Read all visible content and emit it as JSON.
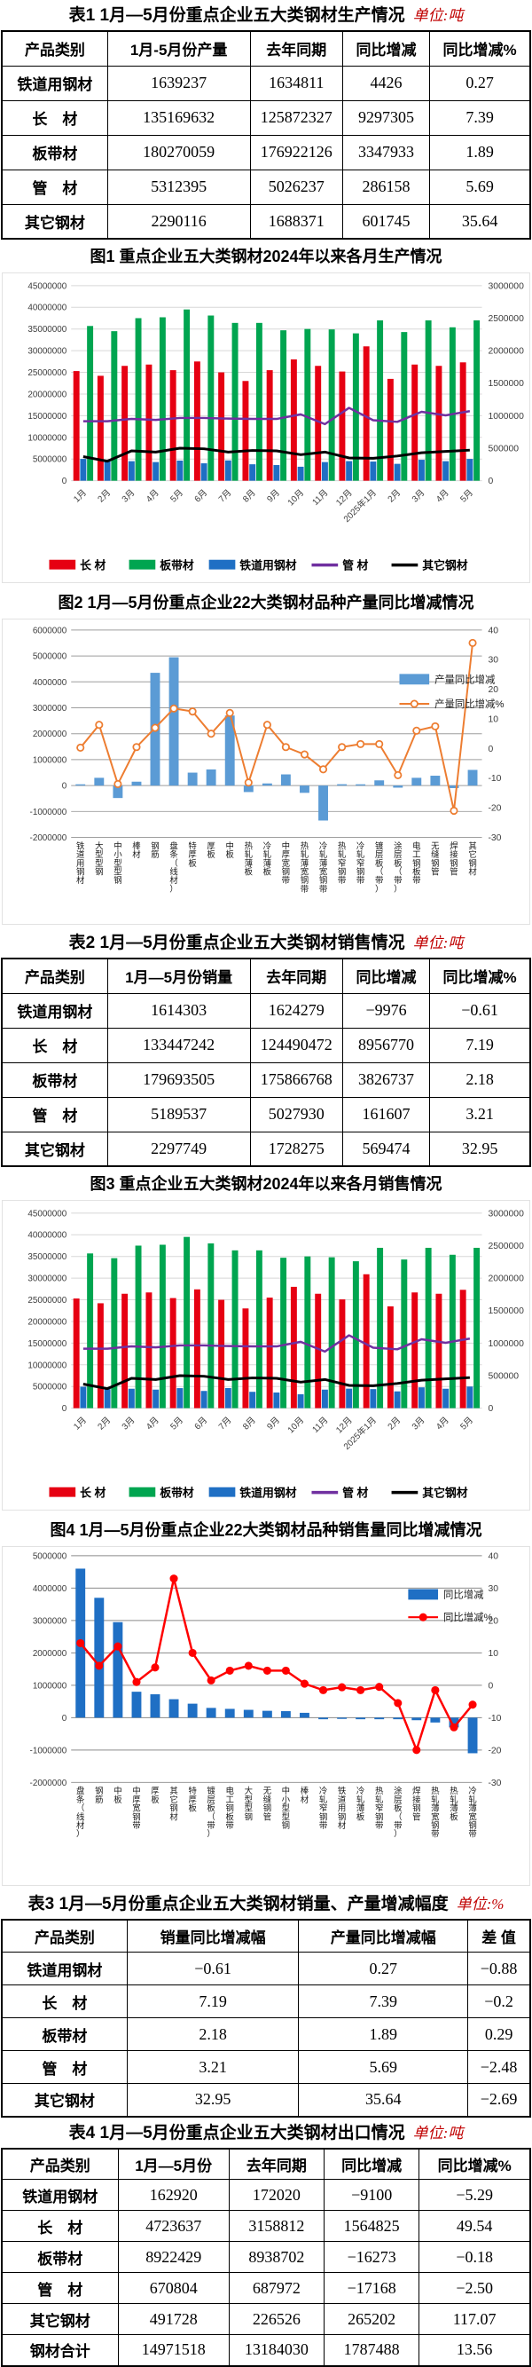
{
  "tables": [
    {
      "caption": "表1  1月—5月份重点企业五大类钢材生产情况",
      "unit": "单位:吨",
      "col_widths": [
        "20%",
        "27%",
        "17.5%",
        "16.5%",
        "19%"
      ],
      "headers": [
        "产品类别",
        "1月-5月份产量",
        "去年同期",
        "同比增减",
        "同比增减%"
      ],
      "rows": [
        [
          "铁道用钢材",
          "1639237",
          "1634811",
          "4426",
          "0.27"
        ],
        [
          "长　材",
          "135169632",
          "125872327",
          "9297305",
          "7.39"
        ],
        [
          "板带材",
          "180270059",
          "176922126",
          "3347933",
          "1.89"
        ],
        [
          "管　材",
          "5312395",
          "5026237",
          "286158",
          "5.69"
        ],
        [
          "其它钢材",
          "2290116",
          "1688371",
          "601745",
          "35.64"
        ]
      ]
    },
    {
      "caption": "表2  1月—5月份重点企业五大类钢材销售情况",
      "unit": "单位:吨",
      "col_widths": [
        "20%",
        "27%",
        "17.5%",
        "16.5%",
        "19%"
      ],
      "headers": [
        "产品类别",
        "1月—5月份销量",
        "去年同期",
        "同比增减",
        "同比增减%"
      ],
      "rows": [
        [
          "铁道用钢材",
          "1614303",
          "1624279",
          "−9976",
          "−0.61"
        ],
        [
          "长　材",
          "133447242",
          "124490472",
          "8956770",
          "7.19"
        ],
        [
          "板带材",
          "179693505",
          "175866768",
          "3826737",
          "2.18"
        ],
        [
          "管　材",
          "5189537",
          "5027930",
          "161607",
          "3.21"
        ],
        [
          "其它钢材",
          "2297749",
          "1728275",
          "569474",
          "32.95"
        ]
      ]
    },
    {
      "caption": "表3 1月—5月份重点企业五大类钢材销量、产量增减幅度",
      "unit": "单位:%",
      "col_widths": [
        "23.7%",
        "32.5%",
        "32%",
        "11.8%"
      ],
      "headers": [
        "产品类别",
        "销量同比增减幅",
        "产量同比增减幅",
        "差 值"
      ],
      "rows": [
        [
          "铁道用钢材",
          "−0.61",
          "0.27",
          "−0.88"
        ],
        [
          "长　材",
          "7.19",
          "7.39",
          "−0.2"
        ],
        [
          "板带材",
          "2.18",
          "1.89",
          "0.29"
        ],
        [
          "管　材",
          "3.21",
          "5.69",
          "−2.48"
        ],
        [
          "其它钢材",
          "32.95",
          "35.64",
          "−2.69"
        ]
      ]
    },
    {
      "caption": "表4 1月—5月份重点企业五大类钢材出口情况",
      "unit": "单位:吨",
      "col_widths": [
        "22%",
        "21%",
        "18%",
        "18%",
        "21%"
      ],
      "headers": [
        "产品类别",
        "1月—5月份",
        "去年同期",
        "同比增减",
        "同比增减%"
      ],
      "rows": [
        [
          "铁道用钢材",
          "162920",
          "172020",
          "−9100",
          "−5.29"
        ],
        [
          "长　材",
          "4723637",
          "3158812",
          "1564825",
          "49.54"
        ],
        [
          "板带材",
          "8922429",
          "8938702",
          "−16273",
          "−0.18"
        ],
        [
          "管　材",
          "670804",
          "687972",
          "−17168",
          "−2.50"
        ],
        [
          "其它钢材",
          "491728",
          "226526",
          "265202",
          "117.07"
        ],
        [
          "钢材合计",
          "14971518",
          "13184030",
          "1787488",
          "13.56"
        ]
      ]
    }
  ],
  "chart_data": [
    {
      "type": "combo",
      "title": "图1 重点企业五大类钢材2024年以来各月生产情况",
      "categories": [
        "1月",
        "2月",
        "3月",
        "4月",
        "5月",
        "6月",
        "7月",
        "8月",
        "9月",
        "10月",
        "11月",
        "12月",
        "2025年1月",
        "2月",
        "3月",
        "4月",
        "5月"
      ],
      "left_axis": {
        "min": 0,
        "max": 45000000,
        "step": 5000000
      },
      "right_axis": {
        "min": 0,
        "max": 3000000,
        "step": 500000
      },
      "grid": true,
      "legend_position": "bottom",
      "series": [
        {
          "name": "长 材",
          "kind": "bar",
          "axis": "left",
          "color": "#e60012",
          "values": [
            25300000,
            24200000,
            26500000,
            26800000,
            25500000,
            27500000,
            25000000,
            23000000,
            25500000,
            28000000,
            26500000,
            25200000,
            31000000,
            23500000,
            26800000,
            26500000,
            27300000
          ]
        },
        {
          "name": "铁道用钢材",
          "kind": "bar",
          "axis": "right",
          "color": "#1f6fc4",
          "values": [
            335000,
            295000,
            300000,
            287000,
            310000,
            267000,
            312000,
            253000,
            240000,
            215000,
            287000,
            302000,
            295000,
            260000,
            322000,
            300000,
            335000
          ]
        },
        {
          "name": "板带材",
          "kind": "bar",
          "axis": "left",
          "color": "#00a550",
          "values": [
            35700000,
            34500000,
            37500000,
            37700000,
            39500000,
            38100000,
            36400000,
            36400000,
            34700000,
            35000000,
            34900000,
            34000000,
            37000000,
            34300000,
            37000000,
            35400000,
            37000000
          ]
        },
        {
          "name": "管 材",
          "kind": "line",
          "axis": "right",
          "color": "#7030a0",
          "width": 2.5,
          "values": [
            915000,
            915000,
            950000,
            935000,
            965000,
            965000,
            955000,
            950000,
            950000,
            1020000,
            870000,
            1120000,
            930000,
            905000,
            1060000,
            1005000,
            1070000
          ]
        },
        {
          "name": "其它钢材",
          "kind": "line",
          "axis": "right",
          "color": "#000000",
          "width": 3,
          "values": [
            370000,
            300000,
            460000,
            440000,
            500000,
            490000,
            440000,
            465000,
            460000,
            400000,
            440000,
            350000,
            345000,
            380000,
            430000,
            450000,
            470000
          ]
        }
      ],
      "legend": [
        {
          "label": "长 材",
          "swatch": "rect",
          "color": "#e60012"
        },
        {
          "label": "板带材",
          "swatch": "rect",
          "color": "#00a550"
        },
        {
          "label": "铁道用钢材",
          "swatch": "rect",
          "color": "#1f6fc4"
        },
        {
          "label": "管 材",
          "swatch": "line",
          "color": "#7030a0"
        },
        {
          "label": "其它钢材",
          "swatch": "line",
          "color": "#000000"
        }
      ]
    },
    {
      "type": "combo",
      "title": "图2  1月—5月份重点企业22大类钢材品种产量同比增减情况",
      "categories": [
        "铁道用钢材",
        "大型型钢",
        "中小型型钢",
        "棒材",
        "钢筋",
        "盘条（线材）",
        "特厚板",
        "厚板",
        "中板",
        "热轧薄板",
        "冷轧薄板",
        "中厚宽钢带",
        "热轧薄宽钢带",
        "冷轧薄宽钢带",
        "热轧窄钢带",
        "冷轧窄钢带",
        "镀层板（带）",
        "涂层板（带）",
        "电工钢板带",
        "无缝钢管",
        "焊接钢管",
        "其它钢材"
      ],
      "left_axis": {
        "min": -2000000,
        "max": 6000000,
        "step": 1000000
      },
      "right_axis": {
        "min": -30,
        "max": 40,
        "step": 10
      },
      "grid": true,
      "legend_position": "inside-right",
      "series": [
        {
          "name": "产量同比增减",
          "kind": "bar",
          "axis": "left",
          "color": "#5b9bd5",
          "values": [
            4426,
            300000,
            -480000,
            150000,
            4350000,
            4950000,
            500000,
            620000,
            2700000,
            -250000,
            80000,
            430000,
            -280000,
            -1350000,
            50000,
            20000,
            200000,
            -80000,
            300000,
            380000,
            -100000,
            601745
          ]
        },
        {
          "name": "产量同比增减%",
          "kind": "line",
          "axis": "right",
          "color": "#ed7d31",
          "width": 2,
          "marker": "open",
          "values": [
            0.27,
            8,
            -12,
            0.5,
            7,
            13.5,
            12.5,
            5,
            12,
            -11.5,
            8,
            0.5,
            -2,
            -7,
            0.5,
            1.5,
            1.5,
            -9,
            6,
            7.5,
            -21,
            35.64
          ]
        }
      ],
      "legend": [
        {
          "label": "产量同比增减",
          "swatch": "rect",
          "color": "#5b9bd5"
        },
        {
          "label": "产量同比增减%",
          "swatch": "line",
          "color": "#ed7d31",
          "marker": "open"
        }
      ]
    },
    {
      "type": "combo",
      "title": "图3  重点企业五大类钢材2024年以来各月销售情况",
      "categories": [
        "1月",
        "2月",
        "3月",
        "4月",
        "5月",
        "6月",
        "7月",
        "8月",
        "9月",
        "10月",
        "11月",
        "12月",
        "2025年1月",
        "2月",
        "3月",
        "4月",
        "5月"
      ],
      "left_axis": {
        "min": 0,
        "max": 45000000,
        "step": 5000000
      },
      "right_axis": {
        "min": 0,
        "max": 3000000,
        "step": 500000
      },
      "grid": true,
      "legend_position": "bottom",
      "series": [
        {
          "name": "长 材",
          "kind": "bar",
          "axis": "left",
          "color": "#e60012",
          "values": [
            25300000,
            24200000,
            26400000,
            26700000,
            25400000,
            27400000,
            25000000,
            23000000,
            25500000,
            28000000,
            26400000,
            25100000,
            30900000,
            23500000,
            26700000,
            26400000,
            27300000
          ]
        },
        {
          "name": "铁道用钢材",
          "kind": "bar",
          "axis": "right",
          "color": "#1f6fc4",
          "values": [
            330000,
            293000,
            298000,
            285000,
            308000,
            265000,
            310000,
            252000,
            240000,
            213000,
            285000,
            300000,
            293000,
            258000,
            320000,
            298000,
            333000
          ]
        },
        {
          "name": "板带材",
          "kind": "bar",
          "axis": "left",
          "color": "#00a550",
          "values": [
            35700000,
            34600000,
            37500000,
            37700000,
            39500000,
            38000000,
            36400000,
            36400000,
            34700000,
            35000000,
            34800000,
            33900000,
            37000000,
            34300000,
            37000000,
            35400000,
            37000000
          ]
        },
        {
          "name": "管 材",
          "kind": "line",
          "axis": "right",
          "color": "#7030a0",
          "width": 2.5,
          "values": [
            915000,
            915000,
            950000,
            935000,
            965000,
            965000,
            955000,
            950000,
            950000,
            1020000,
            870000,
            1120000,
            930000,
            905000,
            1060000,
            1005000,
            1070000
          ]
        },
        {
          "name": "其它钢材",
          "kind": "line",
          "axis": "right",
          "color": "#000000",
          "width": 3,
          "values": [
            370000,
            300000,
            460000,
            440000,
            500000,
            490000,
            440000,
            465000,
            460000,
            400000,
            440000,
            350000,
            345000,
            380000,
            430000,
            450000,
            470000
          ]
        }
      ],
      "legend": [
        {
          "label": "长 材",
          "swatch": "rect",
          "color": "#e60012"
        },
        {
          "label": "板带材",
          "swatch": "rect",
          "color": "#00a550"
        },
        {
          "label": "铁道用钢材",
          "swatch": "rect",
          "color": "#1f6fc4"
        },
        {
          "label": "管 材",
          "swatch": "line",
          "color": "#7030a0"
        },
        {
          "label": "其它钢材",
          "swatch": "line",
          "color": "#000000"
        }
      ]
    },
    {
      "type": "combo",
      "title": "图4 1月—5月份重点企业22大类钢材品种销售量同比增减情况",
      "categories": [
        "盘条（线材）",
        "钢筋",
        "中板",
        "中厚宽钢带",
        "厚板",
        "其它钢材",
        "特厚板",
        "镀层板（带）",
        "电工钢板带",
        "大型型钢",
        "无缝钢管",
        "中小型型钢",
        "棒材",
        "冷轧窄钢带",
        "铁道用钢材",
        "冷轧薄板",
        "热轧窄钢带",
        "涂层板（带）",
        "焊接钢管",
        "热轧薄宽钢带",
        "热轧薄板",
        "冷轧薄宽钢带"
      ],
      "left_axis": {
        "min": -2000000,
        "max": 5000000,
        "step": 1000000
      },
      "right_axis": {
        "min": -30,
        "max": 40,
        "step": 10
      },
      "grid": true,
      "legend_position": "inside-right",
      "series": [
        {
          "name": "同比增减",
          "kind": "bar",
          "axis": "left",
          "color": "#1f6fc4",
          "values": [
            4600000,
            3700000,
            2950000,
            800000,
            720000,
            569474,
            430000,
            300000,
            270000,
            240000,
            210000,
            200000,
            150000,
            -50000,
            -9976,
            -50000,
            -50000,
            -50000,
            -80000,
            -150000,
            -300000,
            -1100000
          ]
        },
        {
          "name": "同比增减%",
          "kind": "line",
          "axis": "right",
          "color": "#ff0000",
          "width": 2.5,
          "marker": "solid",
          "values": [
            13,
            6,
            12,
            1,
            5.5,
            32.95,
            10,
            1.5,
            4.5,
            6,
            4.5,
            4.5,
            0.5,
            -1.5,
            -0.61,
            -1.5,
            -0.5,
            -5.5,
            -20,
            -1.5,
            -13,
            -6
          ]
        }
      ],
      "legend": [
        {
          "label": "同比增减",
          "swatch": "rect",
          "color": "#1f6fc4"
        },
        {
          "label": "同比增减%",
          "swatch": "line",
          "color": "#ff0000",
          "marker": "solid"
        }
      ]
    }
  ]
}
